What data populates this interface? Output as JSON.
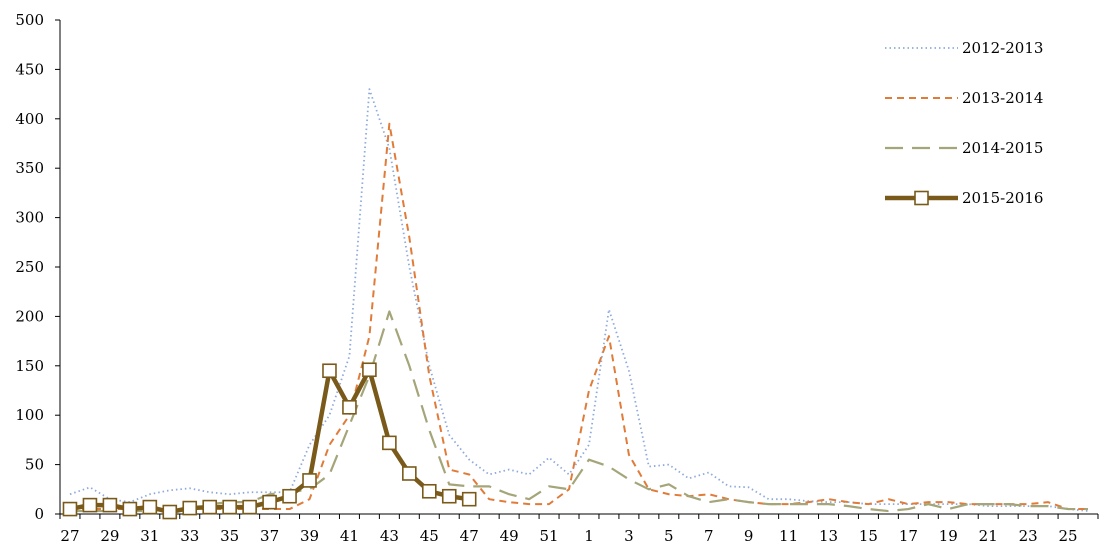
{
  "colors": {
    "s2012": "#8eaadb",
    "s2013": "#e07b39",
    "s2014": "#a5a57a",
    "s2015": "#7a5a1a",
    "marker_fill": "#ffffff",
    "axis": "#000000"
  },
  "chart_data": {
    "type": "line",
    "title": "",
    "xlabel": "",
    "ylabel": "",
    "ylim": [
      0,
      500
    ],
    "y_ticks": [
      "0",
      "50",
      "100",
      "150",
      "200",
      "250",
      "300",
      "350",
      "400",
      "450",
      "500"
    ],
    "x_categories": [
      "27",
      "28",
      "29",
      "30",
      "31",
      "32",
      "33",
      "34",
      "35",
      "36",
      "37",
      "38",
      "39",
      "40",
      "41",
      "42",
      "43",
      "44",
      "45",
      "46",
      "47",
      "48",
      "49",
      "50",
      "51",
      "52",
      "1",
      "2",
      "3",
      "4",
      "5",
      "6",
      "7",
      "8",
      "9",
      "10",
      "11",
      "12",
      "13",
      "14",
      "15",
      "16",
      "17",
      "18",
      "19",
      "20",
      "21",
      "22",
      "23",
      "24",
      "25",
      "26"
    ],
    "x_tick_labels": [
      "27",
      "29",
      "31",
      "33",
      "35",
      "37",
      "39",
      "41",
      "43",
      "45",
      "47",
      "49",
      "51",
      "1",
      "3",
      "5",
      "7",
      "9",
      "11",
      "13",
      "15",
      "17",
      "19",
      "21",
      "23",
      "25"
    ],
    "grid": false,
    "legend_position": "top-right",
    "series": [
      {
        "name": "2012-2013",
        "style": "dotted",
        "color_key": "s2012",
        "values": [
          20,
          27,
          15,
          12,
          20,
          24,
          26,
          22,
          20,
          22,
          22,
          22,
          70,
          100,
          160,
          430,
          370,
          250,
          150,
          80,
          55,
          40,
          45,
          40,
          57,
          40,
          70,
          207,
          145,
          48,
          50,
          36,
          42,
          28,
          27,
          15,
          15,
          13,
          12,
          12,
          10,
          10,
          10,
          10,
          10,
          10,
          8,
          8,
          8,
          8,
          5,
          3
        ]
      },
      {
        "name": "2013-2014",
        "style": "short-dash",
        "color_key": "s2013",
        "values": [
          5,
          5,
          5,
          5,
          5,
          5,
          5,
          5,
          5,
          5,
          5,
          5,
          15,
          70,
          100,
          180,
          395,
          280,
          140,
          45,
          40,
          15,
          12,
          10,
          10,
          25,
          125,
          180,
          60,
          25,
          20,
          18,
          20,
          15,
          12,
          10,
          10,
          12,
          15,
          12,
          10,
          15,
          10,
          12,
          12,
          10,
          10,
          10,
          10,
          12,
          5,
          5
        ]
      },
      {
        "name": "2014-2015",
        "style": "long-dash",
        "color_key": "s2014",
        "values": [
          3,
          3,
          3,
          3,
          3,
          5,
          5,
          10,
          12,
          12,
          20,
          22,
          25,
          40,
          90,
          140,
          205,
          150,
          85,
          30,
          28,
          28,
          20,
          15,
          28,
          25,
          55,
          48,
          35,
          25,
          30,
          18,
          12,
          15,
          12,
          10,
          10,
          10,
          10,
          8,
          5,
          3,
          5,
          10,
          5,
          10,
          10,
          10,
          8,
          8,
          5,
          5
        ]
      },
      {
        "name": "2015-2016",
        "style": "solid-marker",
        "color_key": "s2015",
        "values": [
          5,
          9,
          9,
          5,
          7,
          2,
          6,
          7,
          7,
          7,
          12,
          18,
          34,
          145,
          108,
          146,
          72,
          41,
          23,
          18,
          15
        ]
      }
    ]
  }
}
